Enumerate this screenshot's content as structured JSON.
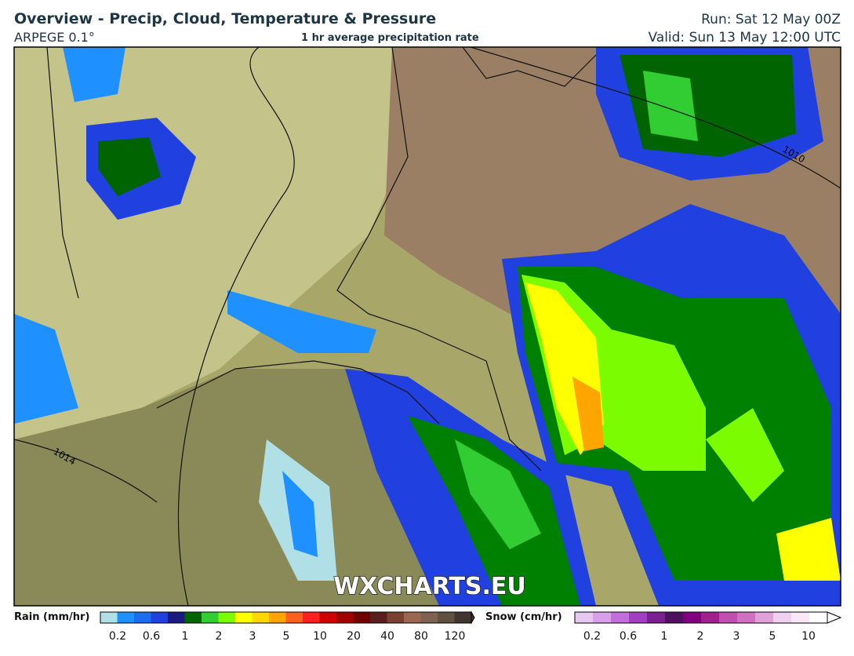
{
  "header": {
    "title": "Overview - Precip, Cloud, Temperature & Pressure",
    "model": "ARPEGE 0.1°",
    "subtitle": "1 hr average precipitation rate",
    "run": "Run: Sat 12 May 00Z",
    "valid": "Valid: Sun 13 May 12:00 UTC"
  },
  "map": {
    "watermark": "WXCHARTS.EU",
    "isobars": [
      "1010",
      "1014"
    ]
  },
  "legend": {
    "rain": {
      "label": "Rain (mm/hr)",
      "ticks": [
        "0.2",
        "0.6",
        "1",
        "2",
        "3",
        "5",
        "10",
        "20",
        "40",
        "80",
        "120"
      ]
    },
    "snow": {
      "label": "Snow (cm/hr)",
      "ticks": [
        "0.2",
        "0.6",
        "1",
        "2",
        "3",
        "5",
        "10"
      ]
    }
  }
}
